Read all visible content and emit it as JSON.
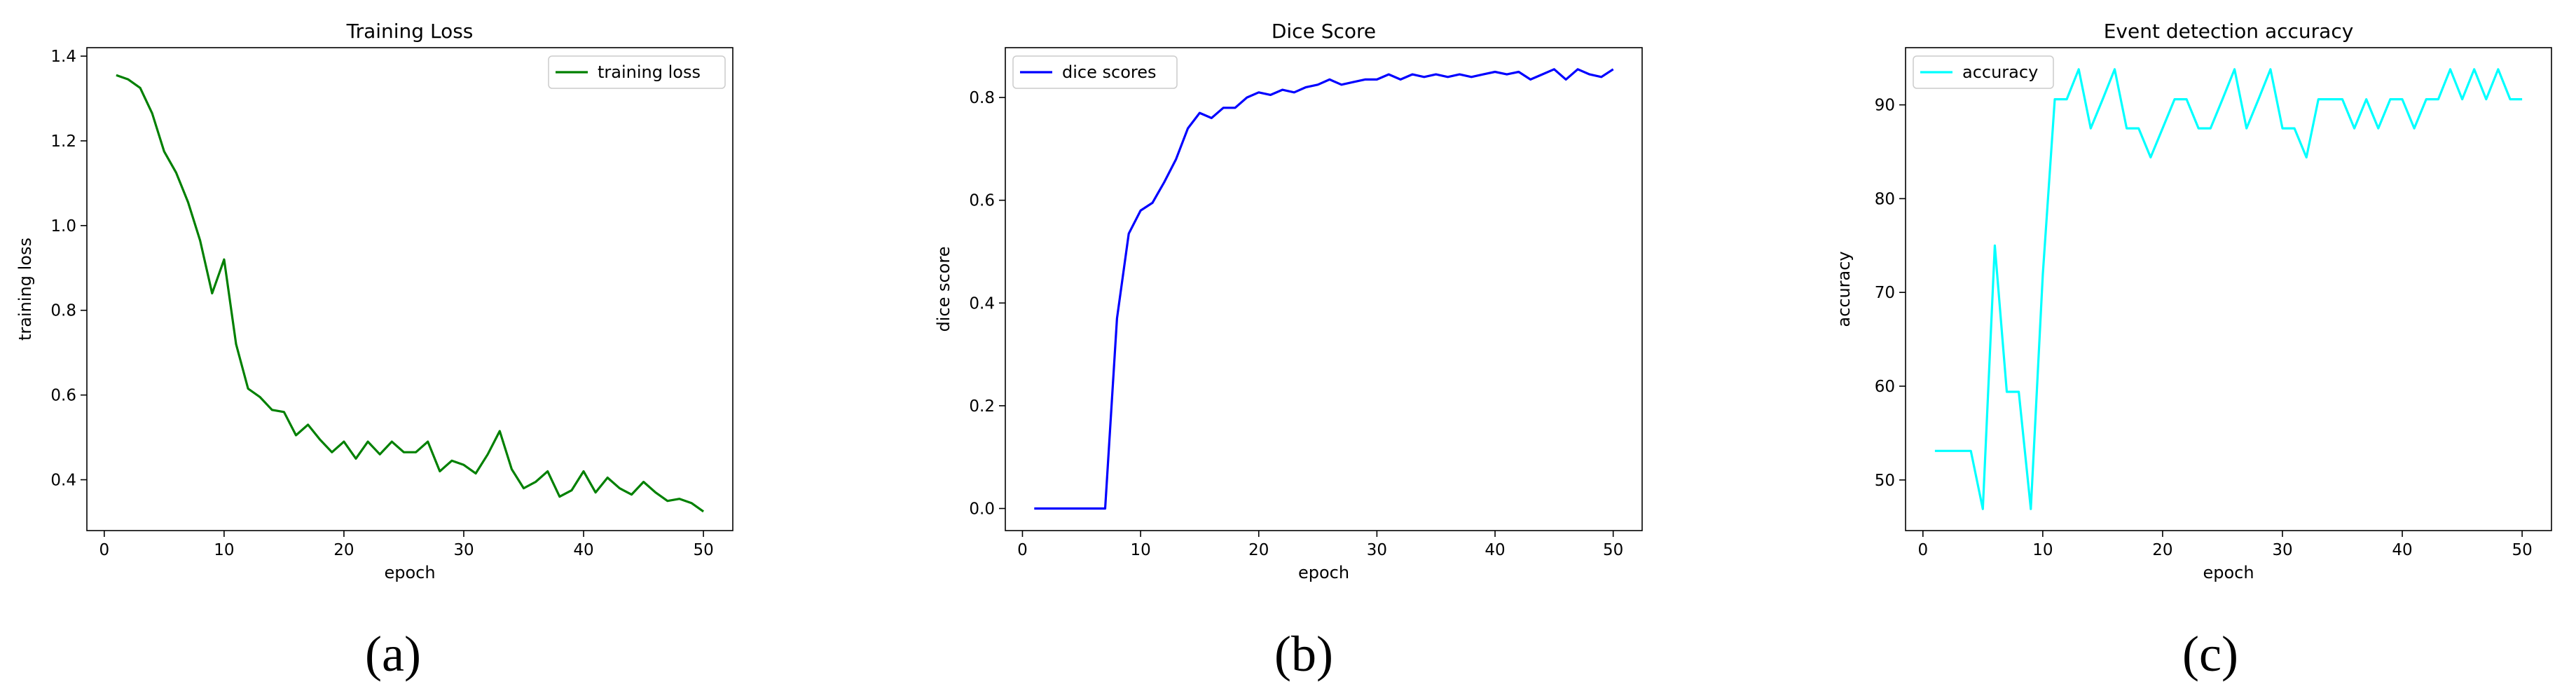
{
  "chart_data": [
    {
      "type": "line",
      "title": "Training Loss",
      "xlabel": "epoch",
      "ylabel": "training loss",
      "caption": "(a)",
      "legend": "upper right",
      "grid": false,
      "xlim": [
        -1.45,
        52.45
      ],
      "ylim": [
        0.28,
        1.42
      ],
      "xticks": [
        0,
        10,
        20,
        30,
        40,
        50
      ],
      "xtick_labels": [
        "0",
        "10",
        "20",
        "30",
        "40",
        "50"
      ],
      "yticks": [
        0.4,
        0.6,
        0.8,
        1.0,
        1.2,
        1.4
      ],
      "ytick_labels": [
        "0.4",
        "0.6",
        "0.8",
        "1.0",
        "1.2",
        "1.4"
      ],
      "series": [
        {
          "name": "training loss",
          "color": "#008000",
          "x": [
            1,
            2,
            3,
            4,
            5,
            6,
            7,
            8,
            9,
            10,
            11,
            12,
            13,
            14,
            15,
            16,
            17,
            18,
            19,
            20,
            21,
            22,
            23,
            24,
            25,
            26,
            27,
            28,
            29,
            30,
            31,
            32,
            33,
            34,
            35,
            36,
            37,
            38,
            39,
            40,
            41,
            42,
            43,
            44,
            45,
            46,
            47,
            48,
            49,
            50
          ],
          "values": [
            1.355,
            1.345,
            1.325,
            1.265,
            1.175,
            1.125,
            1.055,
            0.965,
            0.84,
            0.92,
            0.72,
            0.615,
            0.595,
            0.565,
            0.56,
            0.505,
            0.53,
            0.495,
            0.465,
            0.49,
            0.45,
            0.49,
            0.46,
            0.49,
            0.465,
            0.465,
            0.49,
            0.42,
            0.445,
            0.435,
            0.415,
            0.46,
            0.515,
            0.425,
            0.38,
            0.395,
            0.42,
            0.36,
            0.375,
            0.42,
            0.37,
            0.405,
            0.38,
            0.365,
            0.395,
            0.37,
            0.35,
            0.355,
            0.345,
            0.325
          ]
        }
      ]
    },
    {
      "type": "line",
      "title": "Dice Score",
      "xlabel": "epoch",
      "ylabel": "dice score",
      "caption": "(b)",
      "legend": "upper left",
      "grid": false,
      "xlim": [
        -1.45,
        52.45
      ],
      "ylim": [
        -0.043,
        0.897
      ],
      "xticks": [
        0,
        10,
        20,
        30,
        40,
        50
      ],
      "xtick_labels": [
        "0",
        "10",
        "20",
        "30",
        "40",
        "50"
      ],
      "yticks": [
        0.0,
        0.2,
        0.4,
        0.6,
        0.8
      ],
      "ytick_labels": [
        "0.0",
        "0.2",
        "0.4",
        "0.6",
        "0.8"
      ],
      "series": [
        {
          "name": "dice scores",
          "color": "#0000ff",
          "x": [
            1,
            2,
            3,
            4,
            5,
            6,
            7,
            8,
            9,
            10,
            11,
            12,
            13,
            14,
            15,
            16,
            17,
            18,
            19,
            20,
            21,
            22,
            23,
            24,
            25,
            26,
            27,
            28,
            29,
            30,
            31,
            32,
            33,
            34,
            35,
            36,
            37,
            38,
            39,
            40,
            41,
            42,
            43,
            44,
            45,
            46,
            47,
            48,
            49,
            50
          ],
          "values": [
            0,
            0,
            0,
            0,
            0,
            0,
            0,
            0.37,
            0.535,
            0.58,
            0.595,
            0.635,
            0.68,
            0.74,
            0.77,
            0.76,
            0.78,
            0.78,
            0.8,
            0.81,
            0.805,
            0.815,
            0.81,
            0.82,
            0.825,
            0.835,
            0.825,
            0.83,
            0.835,
            0.835,
            0.845,
            0.835,
            0.845,
            0.84,
            0.845,
            0.84,
            0.845,
            0.84,
            0.845,
            0.85,
            0.845,
            0.85,
            0.835,
            0.845,
            0.855,
            0.835,
            0.855,
            0.845,
            0.84,
            0.855
          ]
        }
      ]
    },
    {
      "type": "line",
      "title": "Event detection accuracy",
      "xlabel": "epoch",
      "ylabel": "accuracy",
      "caption": "(c)",
      "legend": "upper left",
      "grid": false,
      "xlim": [
        -1.45,
        52.45
      ],
      "ylim": [
        44.6,
        96.1
      ],
      "xticks": [
        0,
        10,
        20,
        30,
        40,
        50
      ],
      "xtick_labels": [
        "0",
        "10",
        "20",
        "30",
        "40",
        "50"
      ],
      "yticks": [
        50,
        60,
        70,
        80,
        90
      ],
      "ytick_labels": [
        "50",
        "60",
        "70",
        "80",
        "90"
      ],
      "series": [
        {
          "name": "accuracy",
          "color": "#00ffff",
          "x": [
            1,
            2,
            3,
            4,
            5,
            6,
            7,
            8,
            9,
            10,
            11,
            12,
            13,
            14,
            15,
            16,
            17,
            18,
            19,
            20,
            21,
            22,
            23,
            24,
            25,
            26,
            27,
            28,
            29,
            30,
            31,
            32,
            33,
            34,
            35,
            36,
            37,
            38,
            39,
            40,
            41,
            42,
            43,
            44,
            45,
            46,
            47,
            48,
            49,
            50
          ],
          "values": [
            53.1,
            53.1,
            53.1,
            53.1,
            46.9,
            75,
            59.4,
            59.4,
            46.9,
            71.9,
            90.6,
            90.6,
            93.8,
            87.5,
            90.6,
            93.8,
            87.5,
            87.5,
            84.4,
            87.5,
            90.6,
            90.6,
            87.5,
            87.5,
            90.6,
            93.8,
            87.5,
            90.6,
            93.8,
            87.5,
            87.5,
            84.4,
            90.6,
            90.6,
            90.6,
            87.5,
            90.6,
            87.5,
            90.6,
            90.6,
            87.5,
            90.6,
            90.6,
            93.8,
            90.6,
            93.8,
            90.6,
            93.8,
            90.6,
            90.6
          ]
        }
      ]
    }
  ]
}
